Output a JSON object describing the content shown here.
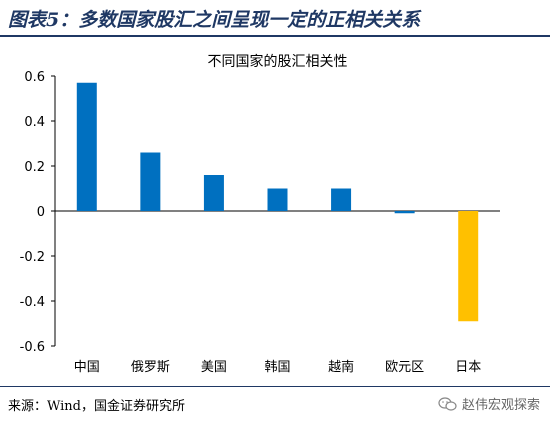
{
  "figure": {
    "title": "图表5：多数国家股汇之间呈现一定的正相关关系",
    "source": "来源：Wind，国金证券研究所",
    "watermark": "赵伟宏观探索",
    "watermark_icon": "wechat-icon"
  },
  "chart_data": {
    "type": "bar",
    "title": "不同国家的股汇相关性",
    "xlabel": "",
    "ylabel": "",
    "categories": [
      "中国",
      "俄罗斯",
      "美国",
      "韩国",
      "越南",
      "欧元区",
      "日本"
    ],
    "values": [
      0.57,
      0.26,
      0.16,
      0.1,
      0.1,
      -0.01,
      -0.49
    ],
    "ylim": [
      -0.6,
      0.6
    ],
    "yticks": [
      -0.6,
      -0.4,
      -0.2,
      0,
      0.2,
      0.4,
      0.6
    ],
    "ytick_labels": [
      "-0.6",
      "-0.4",
      "-0.2",
      "0",
      "0.2",
      "0.4",
      "0.6"
    ],
    "grid": false,
    "legend": "none",
    "colors": {
      "positive": "#0070c0",
      "highlight": "#ffc000",
      "highlight_category": "日本"
    }
  }
}
